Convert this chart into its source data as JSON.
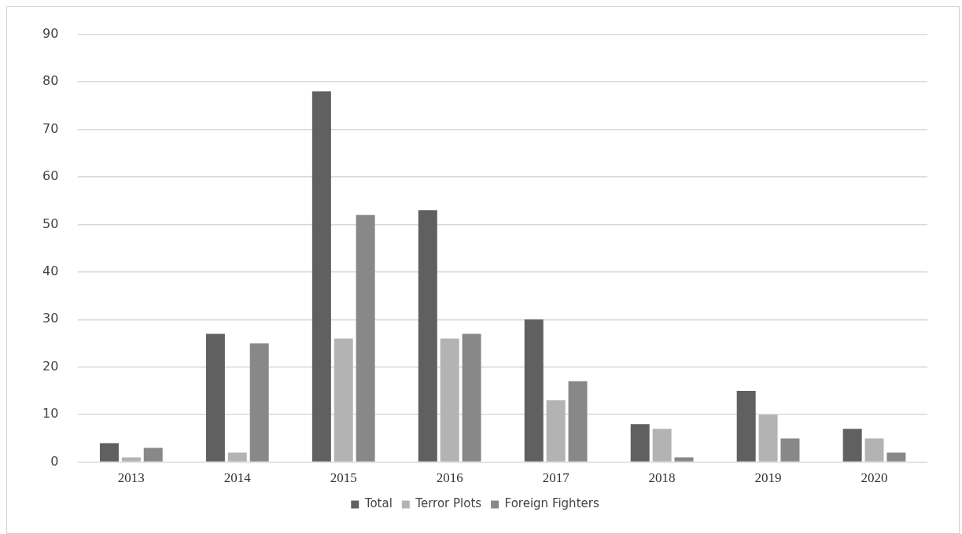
{
  "chart_data": {
    "type": "bar",
    "categories": [
      "2013",
      "2014",
      "2015",
      "2016",
      "2017",
      "2018",
      "2019",
      "2020"
    ],
    "series": [
      {
        "name": "Total",
        "color": "#606060",
        "values": [
          4,
          27,
          78,
          53,
          30,
          8,
          15,
          7
        ]
      },
      {
        "name": "Terror Plots",
        "color": "#b3b3b3",
        "values": [
          1,
          2,
          26,
          26,
          13,
          7,
          10,
          5
        ]
      },
      {
        "name": "Foreign Fighters",
        "color": "#888888",
        "values": [
          3,
          25,
          52,
          27,
          17,
          1,
          5,
          2
        ]
      }
    ],
    "ylim": [
      0,
      90
    ],
    "yticks": [
      0,
      10,
      20,
      30,
      40,
      50,
      60,
      70,
      80,
      90
    ],
    "grid": "y",
    "legend": "bottom"
  }
}
